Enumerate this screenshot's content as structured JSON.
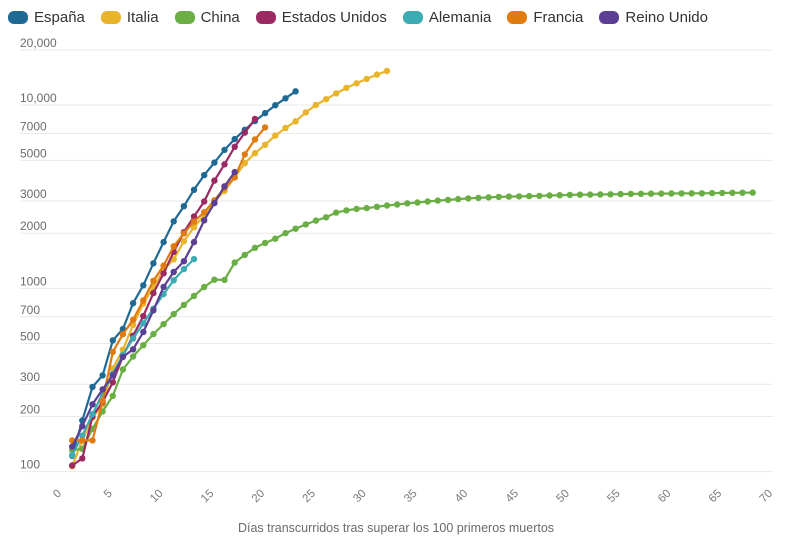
{
  "chart_data": {
    "type": "line",
    "xlabel": "Días transcurridos tras superar los 100 primeros muertos",
    "ylabel": "",
    "y_scale": "log",
    "xlim": [
      0,
      70
    ],
    "ylim": [
      90,
      20000
    ],
    "x_ticks": [
      0,
      5,
      10,
      15,
      20,
      25,
      30,
      35,
      40,
      45,
      50,
      55,
      60,
      65,
      70
    ],
    "y_ticks": [
      {
        "value": 100,
        "label": "100"
      },
      {
        "value": 200,
        "label": "200"
      },
      {
        "value": 300,
        "label": "300"
      },
      {
        "value": 500,
        "label": "500"
      },
      {
        "value": 700,
        "label": "700"
      },
      {
        "value": 1000,
        "label": "1000"
      },
      {
        "value": 2000,
        "label": "2000"
      },
      {
        "value": 3000,
        "label": "3000"
      },
      {
        "value": 5000,
        "label": "5000"
      },
      {
        "value": 7000,
        "label": "7000"
      },
      {
        "value": 10000,
        "label": "10,000"
      },
      {
        "value": 20000,
        "label": "20,000"
      }
    ],
    "grid": true,
    "legend_position": "top-left",
    "series": [
      {
        "name": "España",
        "color": "#1f6a94",
        "x": [
          1,
          2,
          3,
          4,
          5,
          6,
          7,
          8,
          9,
          10,
          11,
          12,
          13,
          14,
          15,
          16,
          17,
          18,
          19,
          20,
          21,
          22,
          23
        ],
        "y": [
          122,
          190,
          290,
          335,
          520,
          600,
          830,
          1040,
          1370,
          1790,
          2320,
          2810,
          3450,
          4150,
          4860,
          5700,
          6530,
          7340,
          8190,
          9050,
          10000,
          10900,
          11900
        ]
      },
      {
        "name": "Italia",
        "color": "#e8b42a",
        "x": [
          1,
          2,
          3,
          4,
          5,
          6,
          7,
          8,
          9,
          10,
          11,
          12,
          13,
          14,
          15,
          16,
          17,
          18,
          19,
          20,
          21,
          22,
          23,
          24,
          25,
          26,
          27,
          28,
          29,
          30,
          31,
          32
        ],
        "y": [
          107,
          148,
          197,
          233,
          366,
          463,
          631,
          827,
          1016,
          1266,
          1441,
          1809,
          2158,
          2503,
          2978,
          3405,
          4032,
          4825,
          5476,
          6077,
          6820,
          7503,
          8165,
          9134,
          10023,
          10779,
          11591,
          12428,
          13155,
          13915,
          14681,
          15362
        ]
      },
      {
        "name": "China",
        "color": "#6aae45",
        "x": [
          1,
          2,
          3,
          4,
          5,
          6,
          7,
          8,
          9,
          10,
          11,
          12,
          13,
          14,
          15,
          16,
          17,
          18,
          19,
          20,
          21,
          22,
          23,
          24,
          25,
          26,
          27,
          28,
          29,
          30,
          31,
          32,
          33,
          34,
          35,
          36,
          37,
          38,
          39,
          40,
          41,
          42,
          43,
          44,
          45,
          46,
          47,
          48,
          49,
          50,
          51,
          52,
          53,
          54,
          55,
          56,
          57,
          58,
          59,
          60,
          61,
          62,
          63,
          64,
          65,
          66,
          67,
          68
        ],
        "y": [
          131,
          133,
          171,
          213,
          259,
          361,
          425,
          490,
          563,
          638,
          724,
          813,
          910,
          1018,
          1115,
          1113,
          1383,
          1523,
          1665,
          1770,
          1868,
          2004,
          2118,
          2236,
          2345,
          2442,
          2592,
          2663,
          2715,
          2744,
          2788,
          2835,
          2870,
          2912,
          2943,
          2981,
          3012,
          3042,
          3070,
          3097,
          3119,
          3136,
          3158,
          3169,
          3176,
          3189,
          3199,
          3213,
          3226,
          3237,
          3245,
          3249,
          3253,
          3261,
          3270,
          3277,
          3281,
          3287,
          3292,
          3295,
          3300,
          3304,
          3305,
          3312,
          3318,
          3326,
          3330,
          3333
        ]
      },
      {
        "name": "Estados Unidos",
        "color": "#9b2a63",
        "x": [
          1,
          2,
          3,
          4,
          5,
          6,
          7,
          8,
          9,
          10,
          11,
          12,
          13,
          14,
          15,
          16,
          17,
          18,
          19
        ],
        "y": [
          108,
          118,
          200,
          240,
          307,
          427,
          552,
          706,
          942,
          1209,
          1581,
          2026,
          2467,
          2978,
          3873,
          4757,
          5926,
          7087,
          8407
        ]
      },
      {
        "name": "Alemania",
        "color": "#3cabb3",
        "x": [
          1,
          2,
          3,
          4,
          5,
          6,
          7,
          8,
          9,
          10,
          11,
          12,
          13
        ],
        "y": [
          123,
          157,
          206,
          267,
          342,
          433,
          533,
          645,
          775,
          931,
          1107,
          1275,
          1444
        ]
      },
      {
        "name": "Francia",
        "color": "#e07b10",
        "x": [
          1,
          2,
          3,
          4,
          5,
          6,
          7,
          8,
          9,
          10,
          11,
          12,
          13,
          14,
          15,
          16,
          17,
          18,
          19,
          20
        ],
        "y": [
          148,
          148,
          148,
          243,
          450,
          562,
          674,
          860,
          1100,
          1331,
          1696,
          1995,
          2314,
          2606,
          3024,
          3523,
          4032,
          5387,
          6507,
          7560
        ]
      },
      {
        "name": "Reino Unido",
        "color": "#5b3f93",
        "x": [
          1,
          2,
          3,
          4,
          5,
          6,
          7,
          8,
          9,
          10,
          11,
          12,
          13,
          14,
          15,
          16,
          17
        ],
        "y": [
          137,
          177,
          233,
          281,
          335,
          422,
          465,
          578,
          759,
          1019,
          1228,
          1408,
          1789,
          2352,
          2921,
          3605,
          4313
        ]
      }
    ]
  }
}
